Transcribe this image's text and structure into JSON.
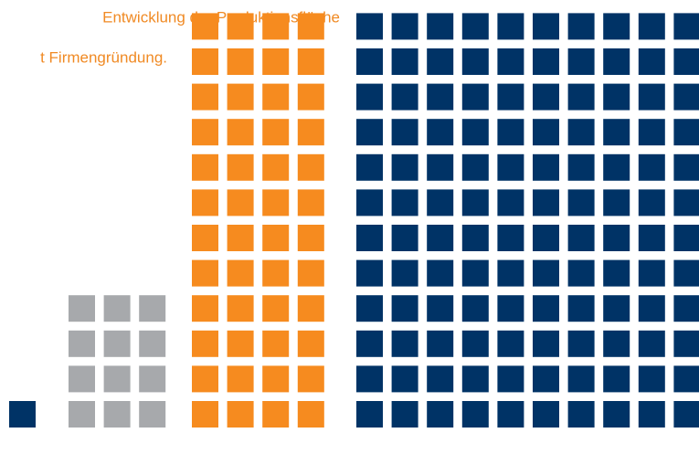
{
  "chart_data": {
    "type": "waffle",
    "title_lines": [
      "Entwicklung der Produktionsfläche",
      "t Firmengründung."
    ],
    "categories": [
      null,
      null,
      null,
      null
    ],
    "values": [
      1,
      12,
      48,
      120
    ],
    "colors": [
      "#003366",
      "#a7a9ac",
      "#f68b1f",
      "#003366"
    ],
    "columns": [
      1,
      3,
      4,
      10
    ]
  }
}
